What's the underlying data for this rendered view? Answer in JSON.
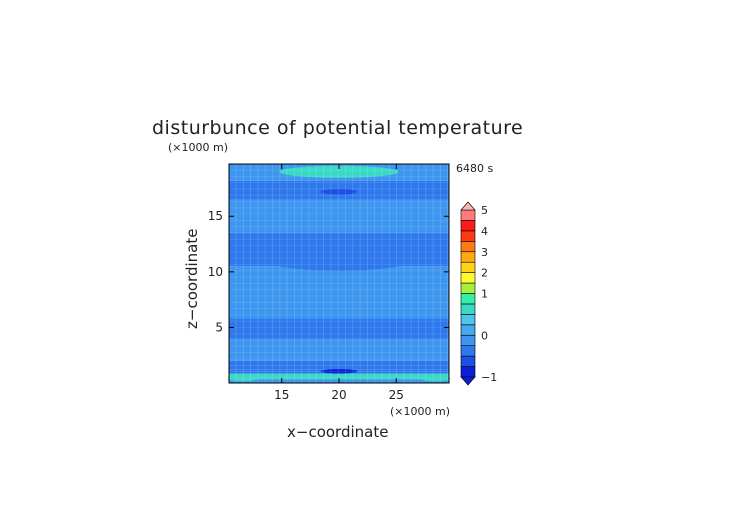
{
  "chart_data": {
    "type": "heatmap",
    "title": "disturbunce of potential temperature",
    "xlabel": "x−coordinate",
    "ylabel": "z−coordinate",
    "x_unit": "(×1000 m)",
    "z_unit": "(×1000 m)",
    "time_label": "6480 s",
    "xlim": [
      10.4,
      29.6
    ],
    "ylim": [
      0,
      19.7
    ],
    "x_ticks": [
      15,
      20,
      25
    ],
    "y_ticks": [
      5,
      10,
      15
    ],
    "colorbar": {
      "ticks": [
        -1,
        0,
        1,
        2,
        3,
        4,
        5
      ],
      "levels": [
        -1,
        -0.75,
        -0.5,
        -0.25,
        0,
        0.25,
        0.5,
        0.75,
        1,
        1.5,
        2,
        2.5,
        3,
        3.5,
        4,
        4.5,
        5
      ],
      "colors": [
        "#0a1fd6",
        "#1d4fe6",
        "#2e78ee",
        "#3d96f0",
        "#46a8ee",
        "#4cc6ea",
        "#3ad9c6",
        "#33f0a6",
        "#a8f040",
        "#fffa2e",
        "#ffd21a",
        "#ffa810",
        "#ff7a10",
        "#ff3a10",
        "#ff1a1a",
        "#ff7a7a",
        "#ffb2b2"
      ]
    },
    "bands": [
      {
        "z": [
          0,
          0.35
        ],
        "value": -0.1
      },
      {
        "z": [
          0.35,
          0.85
        ],
        "value": 0.5
      },
      {
        "z": [
          0.85,
          1.2
        ],
        "value": -0.5
      },
      {
        "z": [
          1.2,
          2.0
        ],
        "value": -0.3
      },
      {
        "z": [
          2.0,
          4.0
        ],
        "value": -0.1
      },
      {
        "z": [
          4.0,
          5.8
        ],
        "value": -0.3
      },
      {
        "z": [
          5.8,
          7.2
        ],
        "value": -0.1
      },
      {
        "z": [
          7.2,
          10.5
        ],
        "value": -0.1
      },
      {
        "z": [
          10.5,
          13.5
        ],
        "value": -0.3
      },
      {
        "z": [
          13.5,
          16.5
        ],
        "value": -0.1
      },
      {
        "z": [
          16.5,
          18.2
        ],
        "value": -0.3
      },
      {
        "z": [
          18.2,
          19.7
        ],
        "value": -0.1
      }
    ],
    "features": [
      {
        "kind": "ellipse",
        "cx": 20,
        "cz": 19.0,
        "rx": 5.2,
        "rz": 0.55,
        "value": 0.6
      },
      {
        "kind": "ellipse",
        "cx": 20,
        "cz": 17.2,
        "rx": 1.6,
        "rz": 0.25,
        "value": -0.6
      },
      {
        "kind": "ellipse",
        "cx": 20,
        "cz": 11.3,
        "rx": 7.0,
        "rz": 1.2,
        "value": -0.3
      },
      {
        "kind": "ellipse",
        "cx": 20,
        "cz": 1.05,
        "rx": 1.6,
        "rz": 0.2,
        "value": -0.8
      },
      {
        "kind": "ellipse",
        "cx": 11.6,
        "cz": 0.4,
        "rx": 1.3,
        "rz": 0.25,
        "value": 0.6
      },
      {
        "kind": "ellipse",
        "cx": 28.4,
        "cz": 0.4,
        "rx": 1.3,
        "rz": 0.25,
        "value": 0.6
      }
    ]
  }
}
